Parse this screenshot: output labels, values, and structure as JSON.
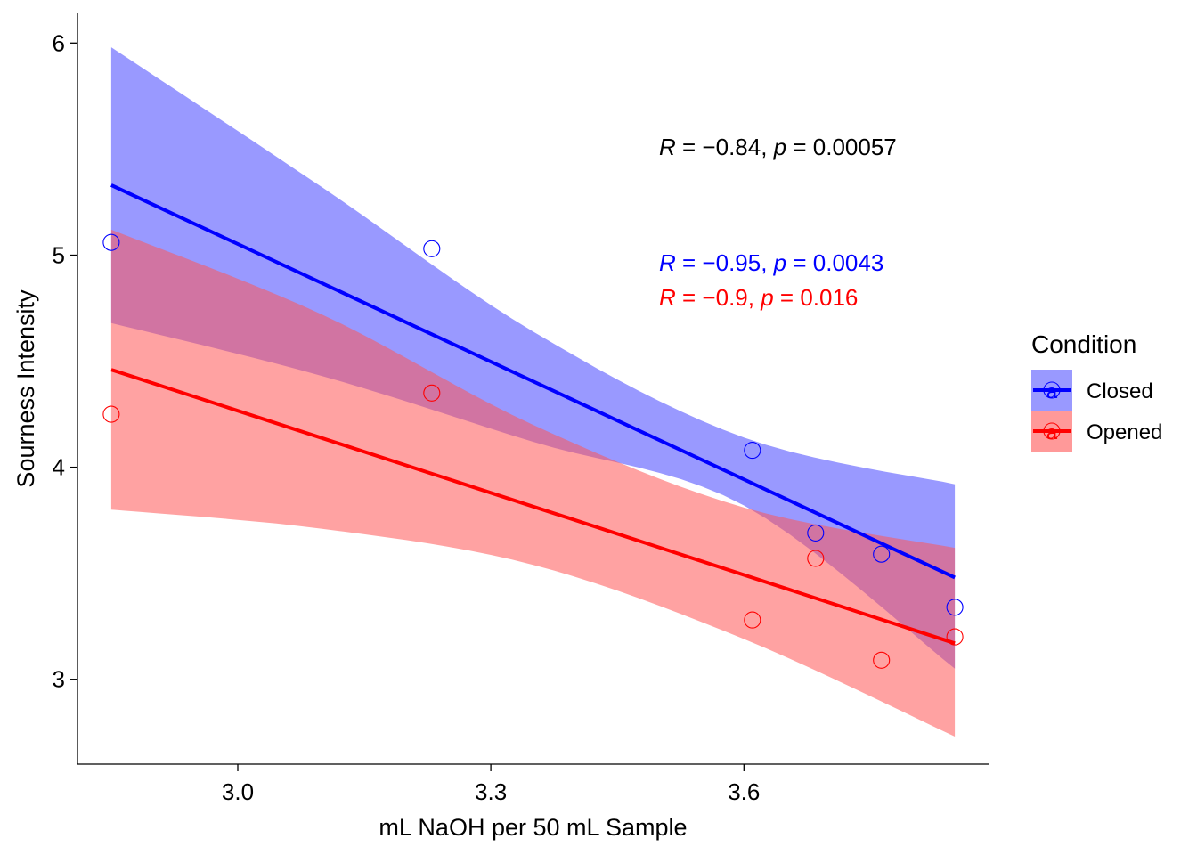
{
  "chart_data": {
    "type": "scatter",
    "xlabel": "mL NaOH per 50 mL Sample",
    "ylabel": "Sourness Intensity",
    "xlim": [
      2.81,
      3.89
    ],
    "ylim": [
      2.6,
      6.14
    ],
    "x_ticks": [
      3.0,
      3.3,
      3.6
    ],
    "x_tick_labels": [
      "3.0",
      "3.3",
      "3.6"
    ],
    "y_ticks": [
      3,
      4,
      5,
      6
    ],
    "y_tick_labels": [
      "3",
      "4",
      "5",
      "6"
    ],
    "grid": false,
    "legend": {
      "title": "Condition",
      "position": "right",
      "entries": [
        "Closed",
        "Opened"
      ],
      "key_glyph": "a"
    },
    "series": [
      {
        "name": "Closed",
        "color": "#0000ff",
        "band_color": "#9999ff",
        "x": [
          2.85,
          3.23,
          3.61,
          3.685,
          3.763,
          3.85
        ],
        "y": [
          5.06,
          5.03,
          4.08,
          3.69,
          3.59,
          3.34
        ],
        "fit": {
          "x": [
            2.85,
            3.85
          ],
          "y": [
            5.33,
            3.48
          ]
        },
        "band": {
          "x": [
            2.85,
            3.1,
            3.35,
            3.6,
            3.85
          ],
          "lower": [
            4.68,
            4.43,
            4.12,
            3.82,
            3.05
          ],
          "upper": [
            5.98,
            5.32,
            4.64,
            4.14,
            3.92
          ]
        },
        "annotation": {
          "R": "−0.95",
          "p": "0.0043"
        }
      },
      {
        "name": "Opened",
        "color": "#ff0000",
        "band_color": "#ff9999",
        "x": [
          2.85,
          3.23,
          3.61,
          3.685,
          3.763,
          3.85
        ],
        "y": [
          4.25,
          4.35,
          3.28,
          3.57,
          3.09,
          3.2
        ],
        "fit": {
          "x": [
            2.85,
            3.85
          ],
          "y": [
            4.46,
            3.17
          ]
        },
        "band": {
          "x": [
            2.85,
            3.1,
            3.35,
            3.6,
            3.85
          ],
          "lower": [
            3.8,
            3.71,
            3.54,
            3.19,
            2.73
          ],
          "upper": [
            5.12,
            4.72,
            4.2,
            3.81,
            3.62
          ]
        },
        "annotation": {
          "R": "−0.9",
          "p": "0.016"
        }
      }
    ],
    "overall_annotation": {
      "R": "−0.84",
      "p": "0.00057"
    }
  }
}
